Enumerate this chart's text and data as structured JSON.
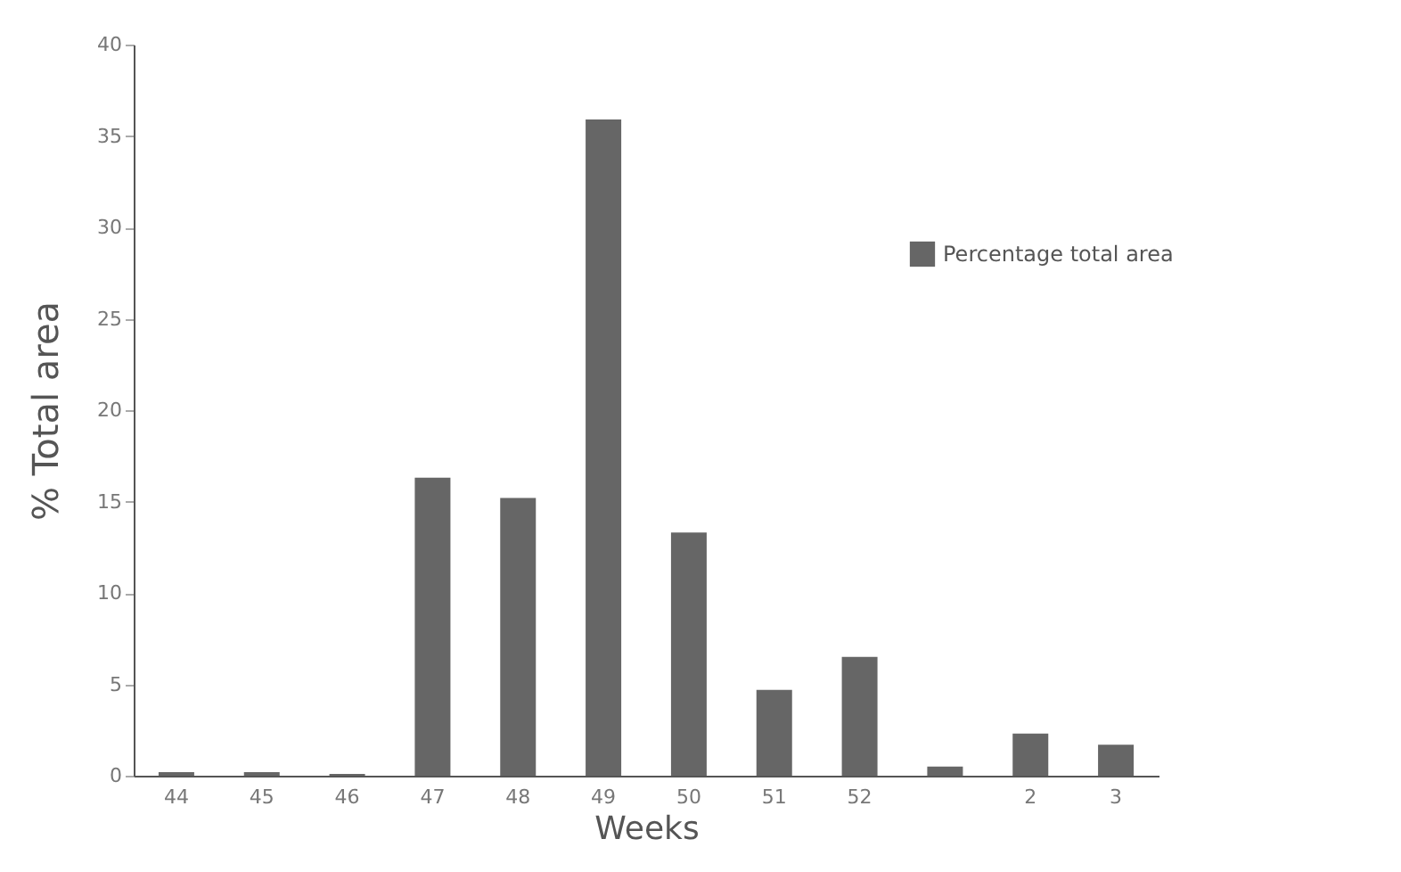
{
  "chart_data": {
    "type": "bar",
    "xlabel": "Weeks",
    "ylabel": "% Total area",
    "categories": [
      "44",
      "45",
      "46",
      "47",
      "48",
      "49",
      "50",
      "51",
      "52",
      null,
      "2",
      "3"
    ],
    "series": [
      {
        "name": "Percentage total area",
        "color": "#666666",
        "values": [
          0.2,
          0.2,
          0.1,
          16.3,
          15.2,
          35.9,
          13.3,
          4.7,
          6.5,
          0.5,
          2.3,
          1.7
        ]
      }
    ],
    "ylim": [
      0,
      40
    ],
    "yticks": [
      0,
      5,
      10,
      15,
      20,
      25,
      30,
      35,
      40
    ],
    "grid": false,
    "legend": "top right"
  }
}
